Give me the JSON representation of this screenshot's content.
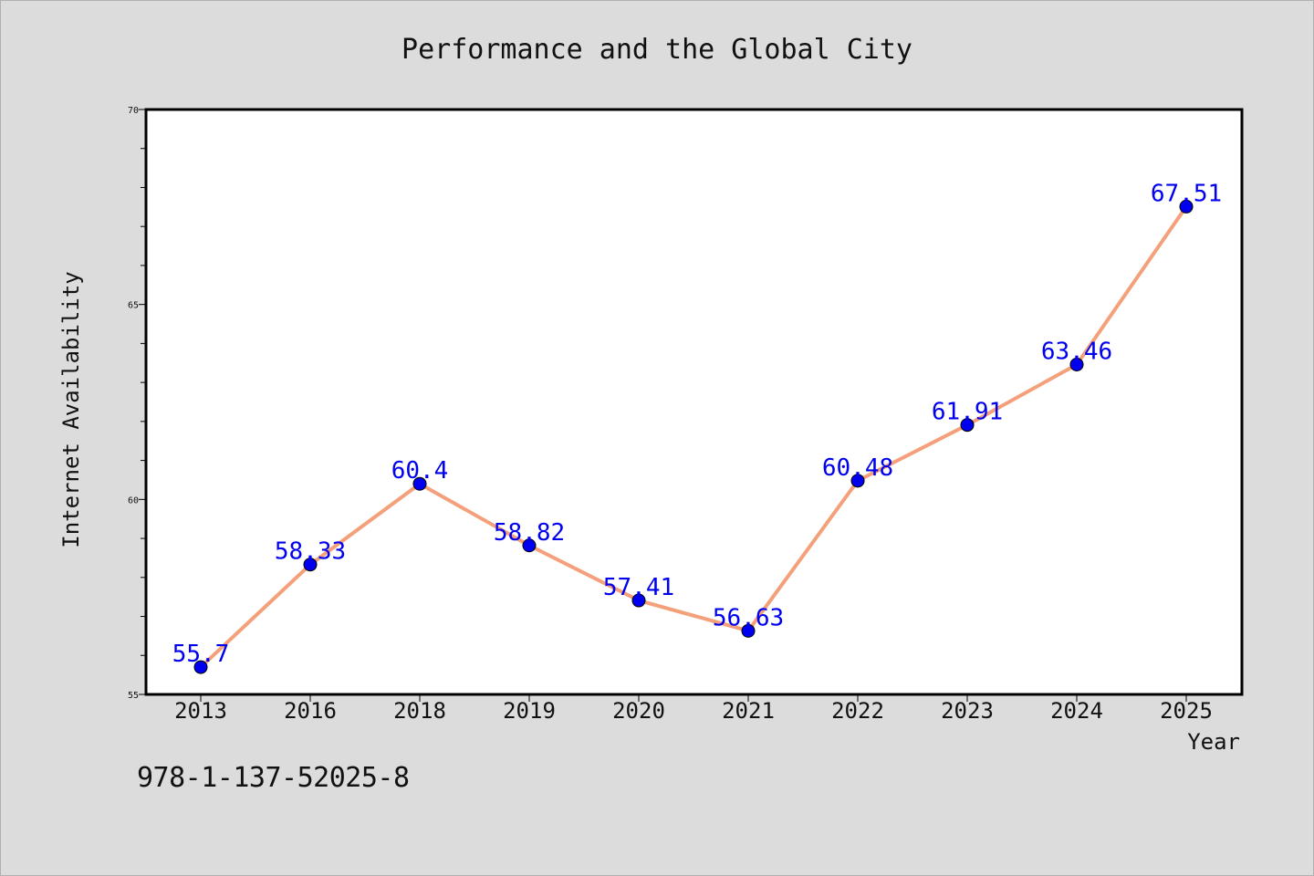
{
  "chart_data": {
    "type": "line",
    "title": "Performance and the Global City",
    "xlabel": "Year",
    "ylabel": "Internet Availability",
    "categories": [
      "2013",
      "2016",
      "2018",
      "2019",
      "2020",
      "2021",
      "2022",
      "2023",
      "2024",
      "2025"
    ],
    "series": [
      {
        "values": [
          55.7,
          58.33,
          60.4,
          58.82,
          57.41,
          56.63,
          60.48,
          61.91,
          63.46,
          67.51
        ],
        "data_labels": [
          "55.7",
          "58.33",
          "60.4",
          "58.82",
          "57.41",
          "56.63",
          "60.48",
          "61.91",
          "63.46",
          "67.51"
        ],
        "line_color": "#f4a07a",
        "marker_color": "#0000ee"
      }
    ],
    "ylim": [
      55,
      70
    ],
    "yticks": [
      55,
      60,
      65,
      70
    ],
    "y_minor_step": 1,
    "label_color": "#0000ee",
    "grid": false
  },
  "footer_code": "978-1-137-52025-8"
}
